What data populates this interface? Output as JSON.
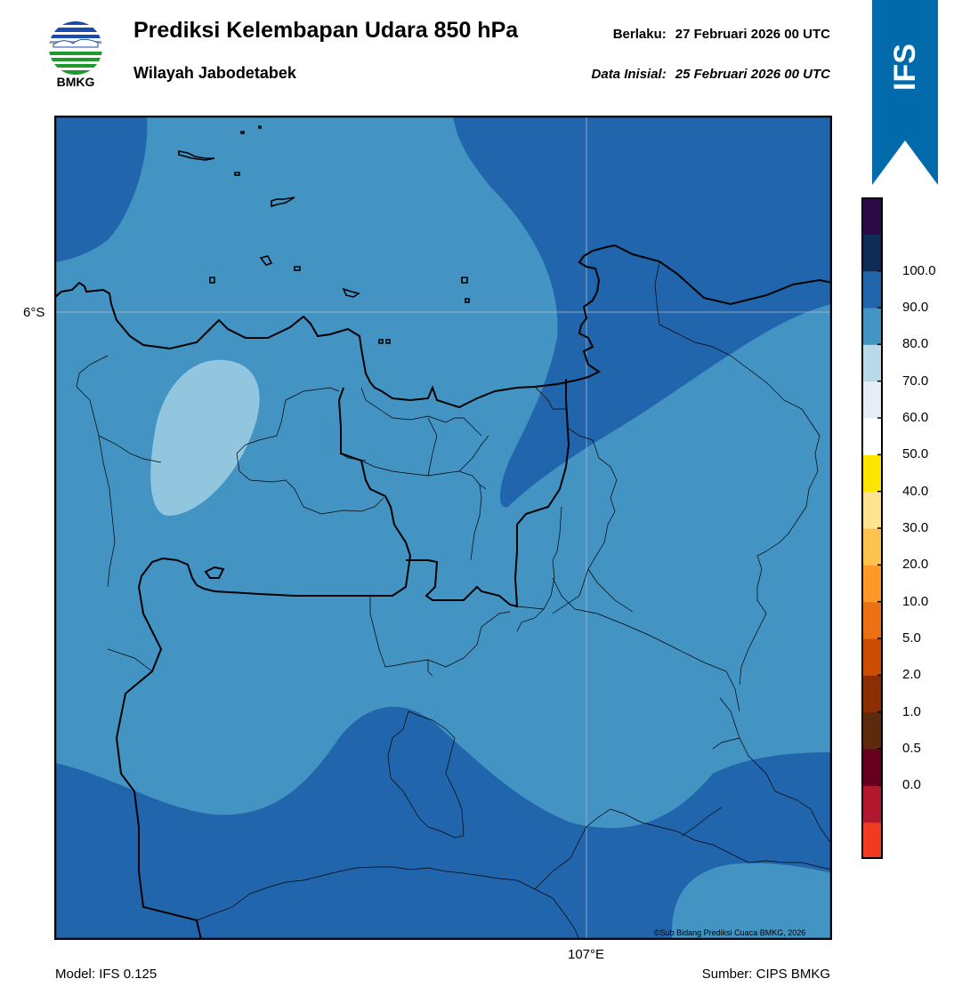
{
  "header": {
    "logo_text": "BMKG",
    "title": "Prediksi Kelembapan Udara 850 hPa",
    "subtitle": "Wilayah Jabodetabek",
    "valid_label": "Berlaku:",
    "valid_value": "27 Februari 2026 00 UTC",
    "init_label": "Data Inisial:",
    "init_value": "25 Februari 2026 00 UTC"
  },
  "ribbon": {
    "label": "IFS",
    "color": "#006aab"
  },
  "map": {
    "lat_label": "6°S",
    "lon_label": "107°E",
    "credit": "©Sub Bidang Prediksi Cuaca BMKG, 2026",
    "fill_colors": {
      "80_90": "#2166ac",
      "70_80": "#4393c3",
      "60_70": "#92c5de"
    }
  },
  "colorbar": {
    "ticks": [
      "100.0",
      "90.0",
      "80.0",
      "70.0",
      "60.0",
      "50.0",
      "40.0",
      "30.0",
      "20.0",
      "10.0",
      "5.0",
      "2.0",
      "1.0",
      "0.5",
      "0.0"
    ],
    "colors": [
      "#f03b20",
      "#b2182b",
      "#67001f",
      "#5c2a0d",
      "#8c2d04",
      "#cc4c02",
      "#ec7014",
      "#fe9929",
      "#fec44f",
      "#fee391",
      "#ffe500",
      "#ffffff",
      "#e5eef5",
      "#b8d9e8",
      "#4393c3",
      "#2166ac",
      "#0d2d55",
      "#2b0a45"
    ]
  },
  "footer": {
    "model": "Model: IFS 0.125",
    "source": "Sumber: CIPS BMKG"
  }
}
